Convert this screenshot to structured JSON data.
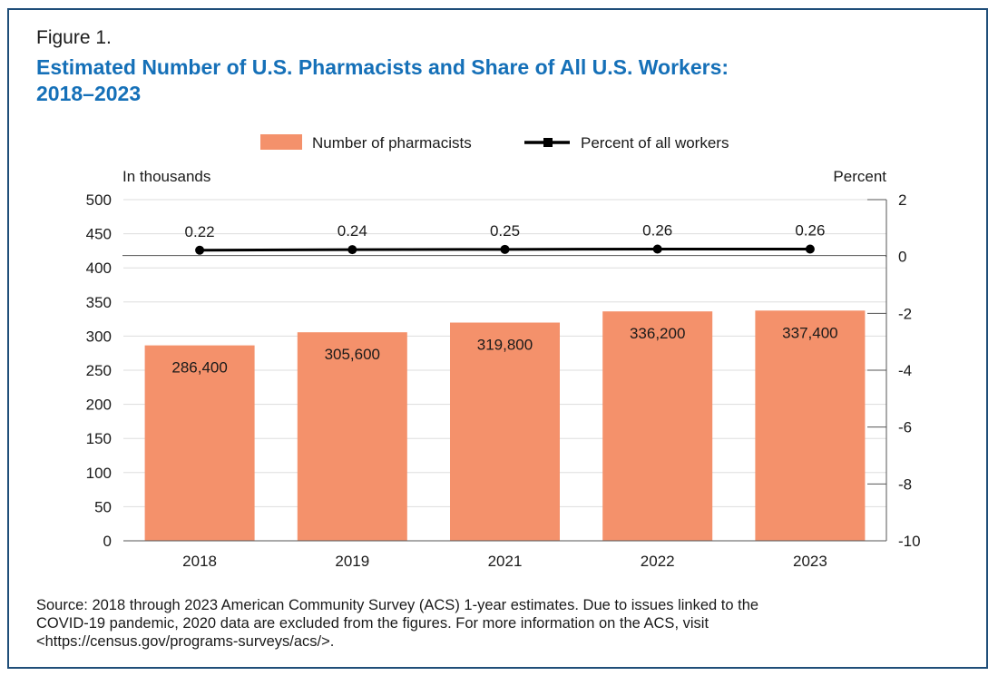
{
  "figure": {
    "label": "Figure 1.",
    "title_line1": "Estimated Number of U.S. Pharmacists and Share of All U.S. Workers:",
    "title_line2": "2018–2023",
    "source_line1": "Source: 2018 through 2023 American Community Survey (ACS) 1-year estimates. Due to issues linked to the",
    "source_line2": "COVID-19 pandemic, 2020 data are excluded from the figures. For more information on the ACS, visit",
    "source_line3": "<https://census.gov/programs-surveys/acs/>."
  },
  "colors": {
    "bar": "#f4916b",
    "line": "#000000",
    "grid": "#dddddd",
    "axis": "#555555",
    "title": "#1570b8",
    "border": "#1f4e79"
  },
  "chart_data": {
    "type": "bar",
    "categories": [
      "2018",
      "2019",
      "2021",
      "2022",
      "2023"
    ],
    "series": [
      {
        "name": "Number of pharmacists",
        "type": "bar",
        "axis": "left",
        "values": [
          286.4,
          305.6,
          319.8,
          336.2,
          337.4
        ],
        "labels": [
          "286,400",
          "305,600",
          "319,800",
          "336,200",
          "337,400"
        ]
      },
      {
        "name": "Percent of all workers",
        "type": "line",
        "axis": "right",
        "values": [
          0.22,
          0.24,
          0.25,
          0.26,
          0.26
        ],
        "labels": [
          "0.22",
          "0.24",
          "0.25",
          "0.26",
          "0.26"
        ]
      }
    ],
    "y_left": {
      "label": "In thousands",
      "ylim": [
        0,
        500
      ],
      "ticks": [
        "0",
        "50",
        "100",
        "150",
        "200",
        "250",
        "300",
        "350",
        "400",
        "450",
        "500"
      ]
    },
    "y_right": {
      "label": "Percent",
      "ylim": [
        -10,
        2
      ],
      "ticks": [
        "-10",
        "-8",
        "-6",
        "-4",
        "-2",
        "0",
        "2"
      ]
    },
    "axis_break": true,
    "grid": true,
    "legend": "top-center"
  }
}
